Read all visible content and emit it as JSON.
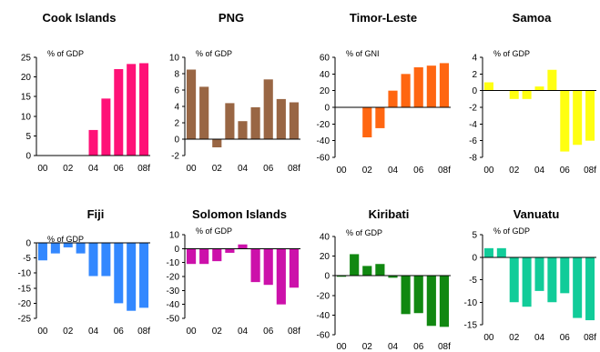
{
  "chart_data": [
    {
      "type": "bar",
      "title": "Cook Islands",
      "ylabel": "% of GDP",
      "ylim": [
        0,
        25
      ],
      "yticks": [
        0,
        5,
        10,
        15,
        20,
        25
      ],
      "categories": [
        "00",
        "01",
        "02",
        "03",
        "04",
        "05",
        "06",
        "07",
        "08f"
      ],
      "x_tick_labels": [
        "00",
        "02",
        "04",
        "06",
        "08f"
      ],
      "values": [
        0,
        0,
        0,
        0,
        6.5,
        14.5,
        22,
        23.3,
        23.5
      ],
      "color": "#FF1177",
      "grid": false
    },
    {
      "type": "bar",
      "title": "PNG",
      "ylabel": "% of GDP",
      "ylim": [
        -2,
        10
      ],
      "yticks": [
        -2,
        0,
        2,
        4,
        6,
        8,
        10
      ],
      "categories": [
        "00",
        "01",
        "02",
        "03",
        "04",
        "05",
        "06",
        "07",
        "08f"
      ],
      "x_tick_labels": [
        "00",
        "02",
        "04",
        "06",
        "08f"
      ],
      "values": [
        8.5,
        6.4,
        -1.0,
        4.4,
        2.2,
        3.9,
        7.3,
        4.9,
        4.5
      ],
      "color": "#996644",
      "grid": false
    },
    {
      "type": "bar",
      "title": "Timor-Leste",
      "ylabel": "% of GNI",
      "ylim": [
        -60,
        60
      ],
      "yticks": [
        -60,
        -40,
        -20,
        0,
        20,
        40,
        60
      ],
      "categories": [
        "00",
        "01",
        "02",
        "03",
        "04",
        "05",
        "06",
        "07",
        "08f"
      ],
      "x_tick_labels": [
        "00",
        "02",
        "04",
        "06",
        "08f"
      ],
      "values": [
        0,
        0,
        -36,
        -25,
        20,
        40,
        48,
        50,
        53
      ],
      "color": "#FF6611",
      "grid": false
    },
    {
      "type": "bar",
      "title": "Samoa",
      "ylabel": "% of GDP",
      "ylim": [
        -8,
        4
      ],
      "yticks": [
        -8,
        -6,
        -4,
        -2,
        0,
        2,
        4
      ],
      "categories": [
        "00",
        "01",
        "02",
        "03",
        "04",
        "05",
        "06",
        "07",
        "08f"
      ],
      "x_tick_labels": [
        "00",
        "02",
        "04",
        "06",
        "08f"
      ],
      "values": [
        1.0,
        0,
        -1.0,
        -1.0,
        0.5,
        2.5,
        -7.3,
        -6.5,
        -6.0
      ],
      "color": "#FFFF11",
      "grid": false
    },
    {
      "type": "bar",
      "title": "Fiji",
      "ylabel": "% of GDP",
      "ylim": [
        -25,
        0
      ],
      "yticks": [
        -25,
        -20,
        -15,
        -10,
        -5,
        0
      ],
      "categories": [
        "00",
        "01",
        "02",
        "03",
        "04",
        "05",
        "06",
        "07",
        "08f"
      ],
      "x_tick_labels": [
        "00",
        "02",
        "04",
        "06",
        "08f"
      ],
      "values": [
        -5.8,
        -3.5,
        -1.5,
        -3.5,
        -11,
        -11,
        -20,
        -22.5,
        -21.5
      ],
      "color": "#3388FF",
      "grid": false
    },
    {
      "type": "bar",
      "title": "Solomon Islands",
      "ylabel": "% of GDP",
      "ylim": [
        -50,
        10
      ],
      "yticks": [
        -50,
        -40,
        -30,
        -20,
        -10,
        0,
        10
      ],
      "categories": [
        "00",
        "01",
        "02",
        "03",
        "04",
        "05",
        "06",
        "07",
        "08f"
      ],
      "x_tick_labels": [
        "00",
        "02",
        "04",
        "06",
        "08f"
      ],
      "values": [
        -11,
        -11,
        -9,
        -3,
        3,
        -24,
        -26,
        -40,
        -28
      ],
      "color": "#CC11AA",
      "grid": false
    },
    {
      "type": "bar",
      "title": "Kiribati",
      "ylabel": "% of GDP",
      "ylim": [
        -60,
        40
      ],
      "yticks": [
        -60,
        -40,
        -20,
        0,
        20,
        40
      ],
      "categories": [
        "00",
        "01",
        "02",
        "03",
        "04",
        "05",
        "06",
        "07",
        "08f"
      ],
      "x_tick_labels": [
        "00",
        "02",
        "04",
        "06",
        "08f"
      ],
      "values": [
        -1,
        22,
        10,
        12,
        -2,
        -39,
        -38,
        -51,
        -52
      ],
      "color": "#118811",
      "grid": false
    },
    {
      "type": "bar",
      "title": "Vanuatu",
      "ylabel": "% of GDP",
      "ylim": [
        -15,
        5
      ],
      "yticks": [
        -15,
        -10,
        -5,
        0,
        5
      ],
      "categories": [
        "00",
        "01",
        "02",
        "03",
        "04",
        "05",
        "06",
        "07",
        "08f"
      ],
      "x_tick_labels": [
        "00",
        "02",
        "04",
        "06",
        "08f"
      ],
      "values": [
        2,
        2,
        -10,
        -11,
        -7.5,
        -10,
        -8,
        -13.5,
        -14
      ],
      "color": "#11CC99",
      "grid": false
    }
  ]
}
